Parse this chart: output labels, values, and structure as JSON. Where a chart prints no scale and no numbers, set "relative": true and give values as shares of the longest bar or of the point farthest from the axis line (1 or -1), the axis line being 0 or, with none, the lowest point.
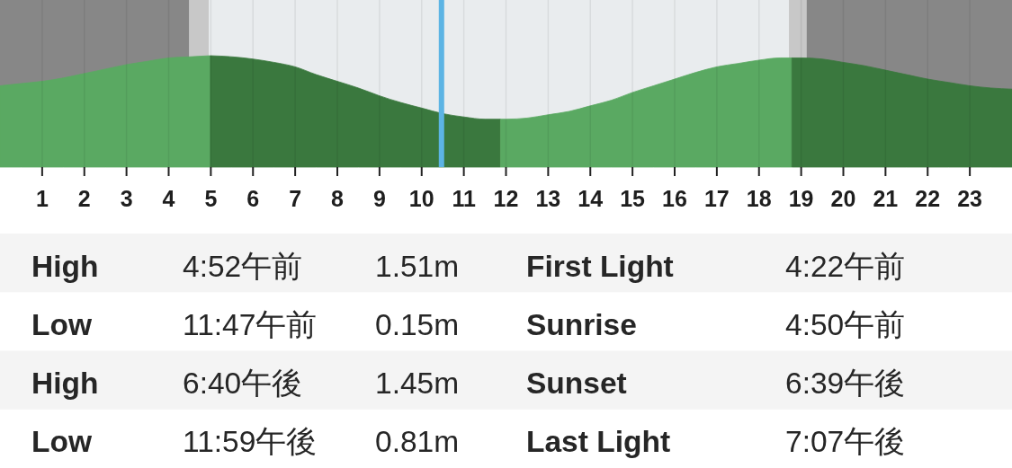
{
  "chart_data": [
    {
      "type": "area",
      "relative": true,
      "xlim": [
        0,
        24
      ],
      "xticks": [
        1,
        2,
        3,
        4,
        5,
        6,
        7,
        8,
        9,
        10,
        11,
        12,
        13,
        14,
        15,
        16,
        17,
        18,
        19,
        20,
        21,
        22,
        23
      ],
      "grid": "x",
      "series": [
        {
          "color": "#5aa962",
          "x": [
            0,
            0.5,
            1,
            1.5,
            2,
            2.5,
            3,
            3.5,
            4,
            4.5,
            4.99
          ],
          "values": [
            0.73,
            0.75,
            0.77,
            0.8,
            0.84,
            0.88,
            0.92,
            0.95,
            0.98,
            0.99,
            1
          ]
        },
        {
          "color": "#3a783e",
          "x": [
            4.99,
            5.5,
            6,
            6.5,
            7,
            7.5,
            8,
            8.5,
            9,
            9.5,
            10,
            10.5,
            11,
            11.5,
            11.87
          ],
          "values": [
            1,
            0.99,
            0.97,
            0.94,
            0.9,
            0.83,
            0.77,
            0.71,
            0.64,
            0.58,
            0.53,
            0.48,
            0.45,
            0.43,
            0.43
          ]
        },
        {
          "color": "#5aa962",
          "x": [
            11.87,
            12,
            12.5,
            13,
            13.5,
            14,
            14.5,
            15,
            15.5,
            16,
            16.5,
            17,
            17.5,
            18,
            18.5,
            18.78
          ],
          "values": [
            0.43,
            0.43,
            0.44,
            0.47,
            0.5,
            0.55,
            0.6,
            0.67,
            0.73,
            0.79,
            0.85,
            0.9,
            0.93,
            0.96,
            0.98,
            0.98
          ]
        },
        {
          "color": "#3a783e",
          "x": [
            18.78,
            19,
            19.5,
            20,
            20.5,
            21,
            21.5,
            22,
            22.5,
            23,
            23.5,
            24
          ],
          "values": [
            0.98,
            0.98,
            0.97,
            0.94,
            0.91,
            0.87,
            0.83,
            0.79,
            0.76,
            0.73,
            0.71,
            0.7
          ]
        }
      ],
      "bands": [
        {
          "axis": "x",
          "from": 0,
          "to": 4.49,
          "color": "#878787"
        },
        {
          "axis": "x",
          "from": 4.49,
          "to": 4.95,
          "color": "#c8c8c8"
        },
        {
          "axis": "x",
          "from": 18.71,
          "to": 19.13,
          "color": "#c8c8c8"
        },
        {
          "axis": "x",
          "from": 19.13,
          "to": 24,
          "color": "#878787"
        }
      ],
      "ref_lines": [
        {
          "axis": "x",
          "value": 10.47,
          "color": "#5cb4e4"
        }
      ]
    },
    {
      "type": "other",
      "annotations": [
        "High",
        "4:52午前",
        "1.51m",
        "First Light",
        "4:22午前",
        "Low",
        "11:47午前",
        "0.15m",
        "Sunrise",
        "4:50午前",
        "High",
        "6:40午後",
        "1.45m",
        "Sunset",
        "6:39午後",
        "Low",
        "11:59午後",
        "0.81m",
        "Last Light",
        "7:07午後"
      ]
    }
  ]
}
